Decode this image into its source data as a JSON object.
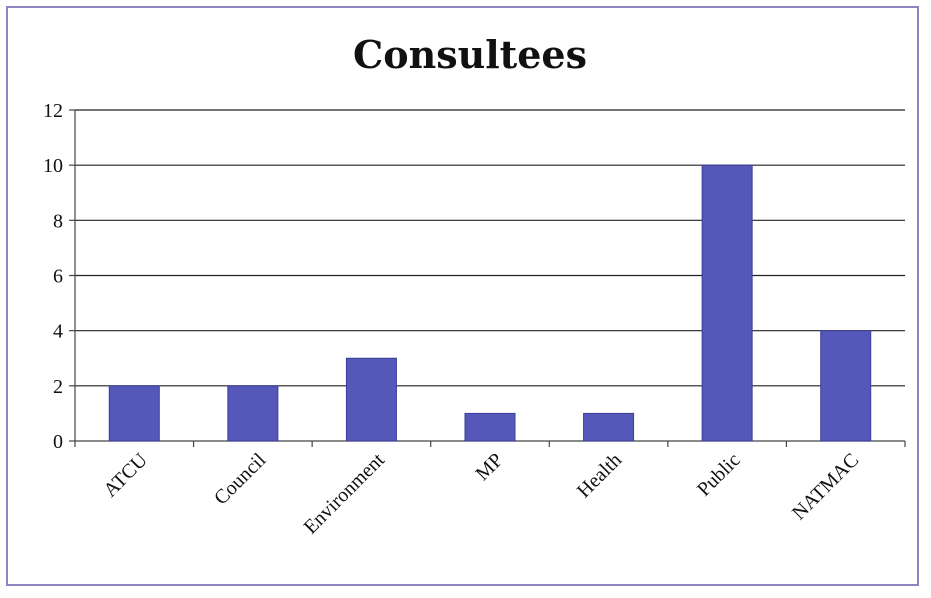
{
  "chart_data": {
    "type": "bar",
    "title": "Consultees",
    "categories": [
      "ATCU",
      "Council",
      "Environment",
      "MP",
      "Health",
      "Public",
      "NATMAC"
    ],
    "values": [
      2,
      2,
      3,
      1,
      1,
      10,
      4
    ],
    "ylim": [
      0,
      12
    ],
    "yticks": [
      0,
      2,
      4,
      6,
      8,
      10,
      12
    ],
    "grid": true,
    "legend": "none",
    "colors": {
      "bar": "#5558b8",
      "frame": "#8b86c2"
    }
  }
}
